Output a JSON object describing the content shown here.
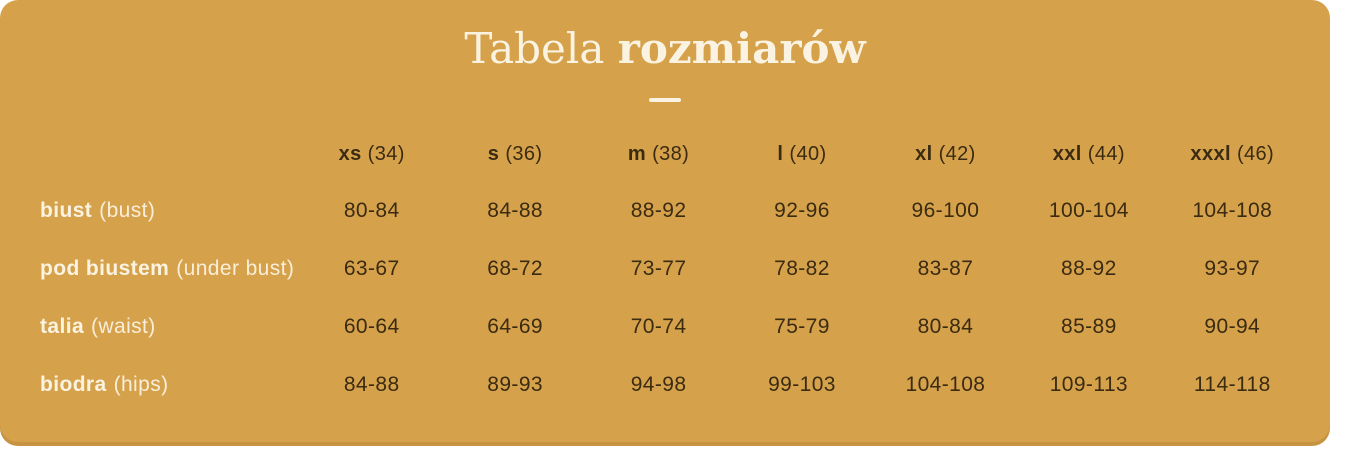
{
  "colors": {
    "card_background": "#D6A14B",
    "cream_text": "#FAF3E1",
    "dark_text": "#3A2B11",
    "page_background": "#ffffff"
  },
  "title": {
    "regular": "Tabela",
    "bold": "rozmiarów"
  },
  "chart_data": {
    "type": "table",
    "title": "Tabela rozmiarów",
    "columns": [
      {
        "size": "xs",
        "eu": "(34)"
      },
      {
        "size": "s",
        "eu": "(36)"
      },
      {
        "size": "m",
        "eu": "(38)"
      },
      {
        "size": "l",
        "eu": "(40)"
      },
      {
        "size": "xl",
        "eu": "(42)"
      },
      {
        "size": "xxl",
        "eu": "(44)"
      },
      {
        "size": "xxxl",
        "eu": "(46)"
      }
    ],
    "rows": [
      {
        "name": "biust",
        "name_en": "(bust)",
        "values": [
          "80-84",
          "84-88",
          "88-92",
          "92-96",
          "96-100",
          "100-104",
          "104-108"
        ]
      },
      {
        "name": "pod biustem",
        "name_en": "(under bust)",
        "values": [
          "63-67",
          "68-72",
          "73-77",
          "78-82",
          "83-87",
          "88-92",
          "93-97"
        ]
      },
      {
        "name": "talia",
        "name_en": "(waist)",
        "values": [
          "60-64",
          "64-69",
          "70-74",
          "75-79",
          "80-84",
          "85-89",
          "90-94"
        ]
      },
      {
        "name": "biodra",
        "name_en": "(hips)",
        "values": [
          "84-88",
          "89-93",
          "94-98",
          "99-103",
          "104-108",
          "109-113",
          "114-118"
        ]
      }
    ]
  }
}
